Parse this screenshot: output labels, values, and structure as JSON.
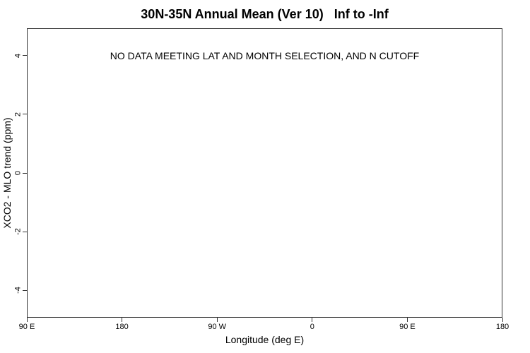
{
  "page": {
    "background": "#ffffff",
    "text_color": "#000000",
    "axis_color": "#333333"
  },
  "chart_data": {
    "type": "scatter",
    "title": "30N-35N Annual Mean (Ver 10)   Inf to -Inf",
    "xlabel": "Longitude (deg E)",
    "ylabel": "XCO2 - MLO trend (ppm)",
    "x_tick_labels": [
      "90 E",
      "180",
      "90 W",
      "0",
      "90 E",
      "180"
    ],
    "y_ticks": [
      4,
      2,
      0,
      -2,
      -4
    ],
    "y_tick_labels": [
      "4",
      "2",
      "0",
      "-2",
      "-4"
    ],
    "ylim": [
      -4.93,
      4.93
    ],
    "grid": false,
    "legend": "none",
    "series": [],
    "annotation": "NO DATA MEETING LAT AND MONTH SELECTION, AND N CUTOFF",
    "annotation_y": 4
  }
}
